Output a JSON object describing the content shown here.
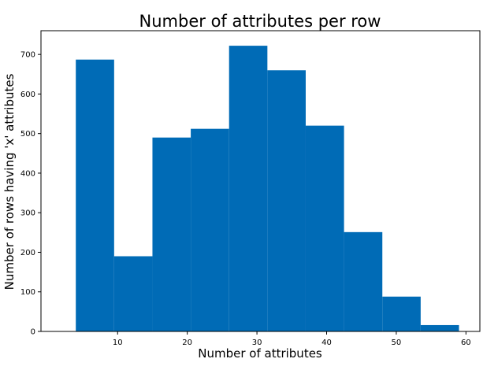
{
  "chart_data": {
    "type": "bar",
    "title": "Number of attributes per row",
    "xlabel": "Number of attributes",
    "ylabel": "Number of rows having 'x' attributes",
    "bin_edges": [
      4,
      9.5,
      15,
      20.5,
      26,
      31.5,
      37,
      42.5,
      48,
      53.5,
      59
    ],
    "values": [
      687,
      190,
      490,
      512,
      722,
      660,
      520,
      251,
      88,
      16
    ],
    "xlim": [
      -1,
      62
    ],
    "ylim": [
      0,
      760
    ],
    "x_ticks": [
      10,
      20,
      30,
      40,
      50,
      60
    ],
    "y_ticks": [
      0,
      100,
      200,
      300,
      400,
      500,
      600,
      700
    ],
    "bar_color": "#006bb6",
    "grid": false,
    "legend": "none"
  }
}
